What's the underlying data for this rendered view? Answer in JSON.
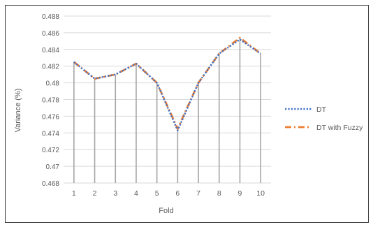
{
  "chart_data": {
    "type": "line",
    "title": "",
    "xlabel": "Fold",
    "ylabel": "Variance (%)",
    "x": [
      1,
      2,
      3,
      4,
      5,
      6,
      7,
      8,
      9,
      10
    ],
    "ylim": [
      0.468,
      0.488
    ],
    "yticks": [
      0.468,
      0.47,
      0.472,
      0.474,
      0.476,
      0.478,
      0.48,
      0.482,
      0.484,
      0.486,
      0.488
    ],
    "ytick_labels": [
      "0.468",
      "0.47",
      "0.472",
      "0.474",
      "0.476",
      "0.478",
      "0.48",
      "0.482",
      "0.484",
      "0.486",
      "0.488"
    ],
    "grid": true,
    "drop_lines": true,
    "legend_position": "right",
    "series": [
      {
        "name": "DT",
        "style": "dotted",
        "color": "#4472c4",
        "values": [
          0.4825,
          0.4805,
          0.481,
          0.4823,
          0.48,
          0.4743,
          0.48,
          0.4835,
          0.4852,
          0.4835
        ]
      },
      {
        "name": "DT with Fuzzy",
        "style": "dash-dot",
        "color": "#ed7d31",
        "values": [
          0.4825,
          0.4805,
          0.481,
          0.4823,
          0.48,
          0.4745,
          0.48,
          0.4835,
          0.4854,
          0.4835
        ]
      }
    ]
  }
}
